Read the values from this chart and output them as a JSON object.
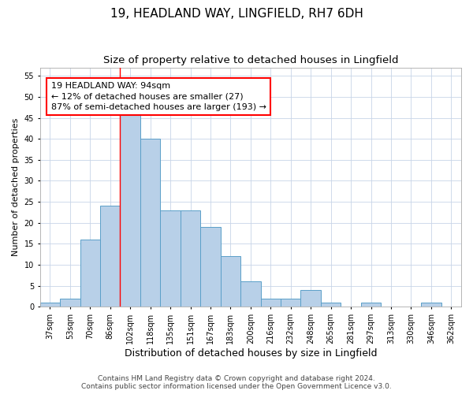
{
  "title1": "19, HEADLAND WAY, LINGFIELD, RH7 6DH",
  "title2": "Size of property relative to detached houses in Lingfield",
  "xlabel": "Distribution of detached houses by size in Lingfield",
  "ylabel": "Number of detached properties",
  "categories": [
    "37sqm",
    "53sqm",
    "70sqm",
    "86sqm",
    "102sqm",
    "118sqm",
    "135sqm",
    "151sqm",
    "167sqm",
    "183sqm",
    "200sqm",
    "216sqm",
    "232sqm",
    "248sqm",
    "265sqm",
    "281sqm",
    "297sqm",
    "313sqm",
    "330sqm",
    "346sqm",
    "362sqm"
  ],
  "values": [
    1,
    2,
    16,
    24,
    46,
    40,
    23,
    23,
    19,
    12,
    6,
    2,
    2,
    4,
    1,
    0,
    1,
    0,
    0,
    1,
    0
  ],
  "bar_color": "#b8d0e8",
  "bar_edge_color": "#5a9fc8",
  "red_line_x": 3.5,
  "ylim": [
    0,
    57
  ],
  "yticks": [
    0,
    5,
    10,
    15,
    20,
    25,
    30,
    35,
    40,
    45,
    50,
    55
  ],
  "annotation_line1": "19 HEADLAND WAY: 94sqm",
  "annotation_line2": "← 12% of detached houses are smaller (27)",
  "annotation_line3": "87% of semi-detached houses are larger (193) →",
  "footnote1": "Contains HM Land Registry data © Crown copyright and database right 2024.",
  "footnote2": "Contains public sector information licensed under the Open Government Licence v3.0.",
  "bg_color": "#ffffff",
  "grid_color": "#c8d4e8",
  "title1_fontsize": 11,
  "title2_fontsize": 9.5,
  "xlabel_fontsize": 9,
  "ylabel_fontsize": 8,
  "tick_fontsize": 7,
  "annotation_fontsize": 8,
  "footnote_fontsize": 6.5
}
